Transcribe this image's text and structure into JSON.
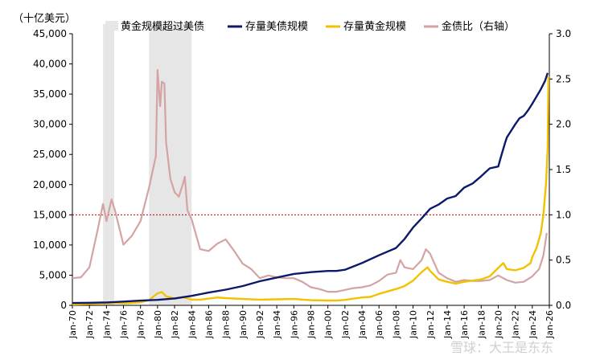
{
  "chart_data": {
    "type": "line",
    "y_unit_label": "（十亿美元）",
    "x_tick_labels": [
      "Jan-70",
      "Jan-72",
      "Jan-74",
      "Jan-76",
      "Jan-78",
      "Jan-80",
      "Jan-82",
      "Jan-84",
      "Jan-86",
      "Jan-88",
      "Jan-90",
      "Jan-92",
      "Jan-94",
      "Jan-96",
      "Jan-98",
      "Jan-00",
      "Jan-02",
      "Jan-04",
      "Jan-06",
      "Jan-08",
      "Jan-10",
      "Jan-12",
      "Jan-14",
      "Jan-16",
      "Jan-18",
      "Jan-20",
      "Jan-22",
      "Jan-24",
      "Jan-26"
    ],
    "x_range": [
      1970.0,
      2026.0
    ],
    "y_left_range": [
      0,
      45000
    ],
    "y_left_ticks": [
      "0",
      "5,000",
      "10,000",
      "15,000",
      "20,000",
      "25,000",
      "30,000",
      "35,000",
      "40,000",
      "45,000"
    ],
    "y_left_tick_values": [
      0,
      5000,
      10000,
      15000,
      20000,
      25000,
      30000,
      35000,
      40000,
      45000
    ],
    "y_right_range": [
      0,
      3.0
    ],
    "y_right_ticks": [
      "0.0",
      "0.5",
      "1.0",
      "1.5",
      "2.0",
      "2.5",
      "3.0"
    ],
    "y_right_tick_values": [
      0,
      0.5,
      1.0,
      1.5,
      2.0,
      2.5,
      3.0
    ],
    "reference_line_right": 1.0,
    "shaded_periods": [
      [
        1973.6,
        1974.9
      ],
      [
        1979.0,
        1984.0
      ]
    ],
    "legend": {
      "shade": "黄金规模超过美债",
      "debt": "存量美债规模",
      "gold": "存量黄金规模",
      "ratio": "金债比（右轴）"
    },
    "watermark": "雪球：大王是东东",
    "colors": {
      "debt": "#0d1a6b",
      "gold": "#f2c100",
      "ratio": "#d4a3a3",
      "shade": "#e6e6e6",
      "refline": "#c00000"
    },
    "series": [
      {
        "name": "存量美债规模",
        "axis": "left",
        "points": [
          [
            1970,
            380
          ],
          [
            1972,
            430
          ],
          [
            1974,
            480
          ],
          [
            1976,
            620
          ],
          [
            1978,
            780
          ],
          [
            1980,
            900
          ],
          [
            1982,
            1140
          ],
          [
            1984,
            1570
          ],
          [
            1986,
            2120
          ],
          [
            1988,
            2600
          ],
          [
            1990,
            3200
          ],
          [
            1992,
            4000
          ],
          [
            1994,
            4600
          ],
          [
            1996,
            5200
          ],
          [
            1998,
            5500
          ],
          [
            2000,
            5700
          ],
          [
            2001,
            5700
          ],
          [
            2002,
            5900
          ],
          [
            2004,
            7000
          ],
          [
            2006,
            8300
          ],
          [
            2008,
            9500
          ],
          [
            2009,
            11000
          ],
          [
            2010,
            12900
          ],
          [
            2011,
            14400
          ],
          [
            2012,
            16000
          ],
          [
            2013,
            16700
          ],
          [
            2014,
            17700
          ],
          [
            2015,
            18100
          ],
          [
            2016,
            19500
          ],
          [
            2017,
            20200
          ],
          [
            2018,
            21400
          ],
          [
            2019,
            22700
          ],
          [
            2020,
            23000
          ],
          [
            2020.3,
            24500
          ],
          [
            2020.8,
            26900
          ],
          [
            2021,
            27800
          ],
          [
            2022,
            30000
          ],
          [
            2022.5,
            31000
          ],
          [
            2023,
            31400
          ],
          [
            2023.5,
            32300
          ],
          [
            2024,
            33400
          ],
          [
            2024.5,
            34600
          ],
          [
            2025,
            35800
          ],
          [
            2025.5,
            37200
          ],
          [
            2025.8,
            38500
          ]
        ]
      },
      {
        "name": "存量黄金规模",
        "axis": "left",
        "points": [
          [
            1970,
            150
          ],
          [
            1972,
            230
          ],
          [
            1974,
            350
          ],
          [
            1975,
            390
          ],
          [
            1976,
            340
          ],
          [
            1977,
            380
          ],
          [
            1978,
            500
          ],
          [
            1979,
            850
          ],
          [
            1980,
            2000
          ],
          [
            1980.5,
            2200
          ],
          [
            1981,
            1500
          ],
          [
            1982,
            1100
          ],
          [
            1983,
            1350
          ],
          [
            1984,
            950
          ],
          [
            1985,
            950
          ],
          [
            1986,
            1100
          ],
          [
            1987,
            1300
          ],
          [
            1988,
            1200
          ],
          [
            1990,
            1050
          ],
          [
            1992,
            950
          ],
          [
            1994,
            1000
          ],
          [
            1996,
            1050
          ],
          [
            1998,
            850
          ],
          [
            2000,
            800
          ],
          [
            2001,
            780
          ],
          [
            2002,
            900
          ],
          [
            2003,
            1100
          ],
          [
            2004,
            1300
          ],
          [
            2005,
            1400
          ],
          [
            2006,
            1900
          ],
          [
            2007,
            2300
          ],
          [
            2008,
            2700
          ],
          [
            2009,
            3200
          ],
          [
            2010,
            4100
          ],
          [
            2011,
            5500
          ],
          [
            2011.7,
            6300
          ],
          [
            2012,
            5700
          ],
          [
            2013,
            4300
          ],
          [
            2014,
            3900
          ],
          [
            2015,
            3600
          ],
          [
            2016,
            3900
          ],
          [
            2017,
            4100
          ],
          [
            2018,
            4300
          ],
          [
            2019,
            4800
          ],
          [
            2020,
            6200
          ],
          [
            2020.6,
            7000
          ],
          [
            2021,
            6000
          ],
          [
            2022,
            5800
          ],
          [
            2023,
            6200
          ],
          [
            2023.8,
            7000
          ],
          [
            2024,
            8000
          ],
          [
            2024.5,
            9500
          ],
          [
            2025,
            12000
          ],
          [
            2025.3,
            15000
          ],
          [
            2025.6,
            20000
          ],
          [
            2025.8,
            26000
          ],
          [
            2025.9,
            38000
          ]
        ]
      },
      {
        "name": "金债比（右轴）",
        "axis": "right",
        "points": [
          [
            1970,
            0.3
          ],
          [
            1971,
            0.31
          ],
          [
            1972,
            0.42
          ],
          [
            1973,
            0.85
          ],
          [
            1973.6,
            1.12
          ],
          [
            1974,
            0.93
          ],
          [
            1974.6,
            1.17
          ],
          [
            1975,
            1.05
          ],
          [
            1976,
            0.67
          ],
          [
            1977,
            0.77
          ],
          [
            1978,
            0.93
          ],
          [
            1979,
            1.3
          ],
          [
            1979.8,
            1.65
          ],
          [
            1980,
            2.6
          ],
          [
            1980.3,
            2.2
          ],
          [
            1980.5,
            2.47
          ],
          [
            1980.8,
            2.45
          ],
          [
            1981,
            1.8
          ],
          [
            1981.5,
            1.4
          ],
          [
            1982,
            1.25
          ],
          [
            1982.5,
            1.2
          ],
          [
            1983,
            1.35
          ],
          [
            1983.2,
            1.42
          ],
          [
            1983.5,
            1.05
          ],
          [
            1984,
            0.95
          ],
          [
            1985,
            0.62
          ],
          [
            1986,
            0.6
          ],
          [
            1987,
            0.68
          ],
          [
            1988,
            0.73
          ],
          [
            1989,
            0.6
          ],
          [
            1990,
            0.46
          ],
          [
            1991,
            0.4
          ],
          [
            1992,
            0.3
          ],
          [
            1993,
            0.33
          ],
          [
            1994,
            0.31
          ],
          [
            1995,
            0.3
          ],
          [
            1996,
            0.3
          ],
          [
            1997,
            0.26
          ],
          [
            1998,
            0.2
          ],
          [
            1999,
            0.18
          ],
          [
            2000,
            0.15
          ],
          [
            2001,
            0.15
          ],
          [
            2002,
            0.17
          ],
          [
            2003,
            0.19
          ],
          [
            2004,
            0.2
          ],
          [
            2005,
            0.22
          ],
          [
            2006,
            0.27
          ],
          [
            2007,
            0.34
          ],
          [
            2008,
            0.36
          ],
          [
            2008.5,
            0.5
          ],
          [
            2009,
            0.42
          ],
          [
            2010,
            0.4
          ],
          [
            2011,
            0.5
          ],
          [
            2011.5,
            0.62
          ],
          [
            2012,
            0.57
          ],
          [
            2013,
            0.36
          ],
          [
            2014,
            0.3
          ],
          [
            2015,
            0.26
          ],
          [
            2016,
            0.28
          ],
          [
            2017,
            0.27
          ],
          [
            2018,
            0.27
          ],
          [
            2019,
            0.28
          ],
          [
            2020,
            0.33
          ],
          [
            2021,
            0.28
          ],
          [
            2022,
            0.25
          ],
          [
            2023,
            0.26
          ],
          [
            2024,
            0.32
          ],
          [
            2024.8,
            0.4
          ],
          [
            2025.3,
            0.55
          ],
          [
            2025.7,
            0.8
          ]
        ]
      }
    ]
  }
}
